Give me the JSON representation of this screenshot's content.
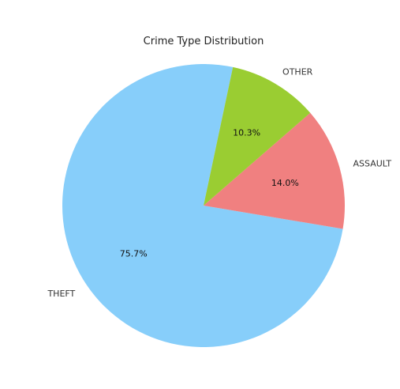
{
  "chart_data": {
    "type": "pie",
    "title": "Crime Type Distribution",
    "slices": [
      {
        "label": "THEFT",
        "value": 75.7,
        "pct_label": "75.7%",
        "color": "#87CEFA"
      },
      {
        "label": "ASSAULT",
        "value": 14.0,
        "pct_label": "14.0%",
        "color": "#F08080"
      },
      {
        "label": "OTHER",
        "value": 10.3,
        "pct_label": "10.3%",
        "color": "#9ACD32"
      }
    ]
  }
}
